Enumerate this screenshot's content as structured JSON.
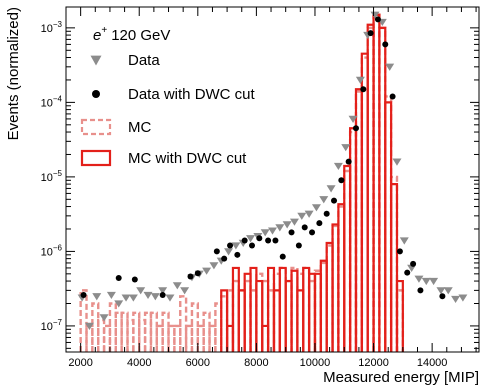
{
  "chart_data": {
    "type": "scatter",
    "title": "",
    "xlabel": "Measured energy [MIP]",
    "ylabel": "Events (normalized)",
    "xlim": [
      1500,
      15600
    ],
    "ylim_log10": [
      -7.35,
      -2.72
    ],
    "y_scale": "log",
    "grid": false,
    "legend_position": "top-left",
    "annotation": {
      "particle": "e",
      "superscript": "+",
      "energy": "120 GeV"
    },
    "x_ticks": [
      2000,
      4000,
      6000,
      8000,
      10000,
      12000,
      14000
    ],
    "x_tick_labels": [
      "2000",
      "4000",
      "6000",
      "8000",
      "10000",
      "12000",
      "14000"
    ],
    "y_ticks_log10": [
      -7,
      -6,
      -5,
      -4,
      -3
    ],
    "y_tick_labels": [
      {
        "base": "10",
        "exp": "−7"
      },
      {
        "base": "10",
        "exp": "−6"
      },
      {
        "base": "10",
        "exp": "−5"
      },
      {
        "base": "10",
        "exp": "−4"
      },
      {
        "base": "10",
        "exp": "−3"
      }
    ],
    "series": [
      {
        "name": "Data",
        "style": "triangle-down",
        "color": "#8c8c8c",
        "points": [
          [
            2050,
            2.4e-07
          ],
          [
            2300,
            1e-07
          ],
          [
            2550,
            2.5e-07
          ],
          [
            2800,
            1.3e-07
          ],
          [
            3050,
            2.6e-07
          ],
          [
            3300,
            2e-07
          ],
          [
            3550,
            2.4e-07
          ],
          [
            3800,
            2.4e-07
          ],
          [
            4050,
            3e-07
          ],
          [
            4300,
            2.6e-07
          ],
          [
            4550,
            2.5e-07
          ],
          [
            4800,
            3e-07
          ],
          [
            5050,
            2.4e-07
          ],
          [
            5300,
            3.5e-07
          ],
          [
            5550,
            3e-07
          ],
          [
            5800,
            4.5e-07
          ],
          [
            6050,
            5e-07
          ],
          [
            6300,
            5.5e-07
          ],
          [
            6550,
            6.5e-07
          ],
          [
            6800,
            7.5e-07
          ],
          [
            7050,
            1e-06
          ],
          [
            7300,
            1.2e-06
          ],
          [
            7550,
            1.3e-06
          ],
          [
            7800,
            1.5e-06
          ],
          [
            8050,
            1.6e-06
          ],
          [
            8300,
            1.8e-06
          ],
          [
            8550,
            1.9e-06
          ],
          [
            8800,
            2.1e-06
          ],
          [
            9050,
            2.3e-06
          ],
          [
            9300,
            2.5e-06
          ],
          [
            9550,
            3e-06
          ],
          [
            9800,
            3.2e-06
          ],
          [
            10050,
            3.9e-06
          ],
          [
            10300,
            5e-06
          ],
          [
            10550,
            7e-06
          ],
          [
            10800,
            1.4e-05
          ],
          [
            11050,
            2.5e-05
          ],
          [
            11300,
            6e-05
          ],
          [
            11550,
            0.0002
          ],
          [
            11800,
            0.0008
          ],
          [
            12050,
            0.0015
          ],
          [
            12300,
            0.0012
          ],
          [
            12550,
            0.0003
          ],
          [
            12800,
            1.6e-05
          ],
          [
            13050,
            1.4e-06
          ],
          [
            13300,
            6e-07
          ],
          [
            13550,
            4.3e-07
          ],
          [
            13800,
            4e-07
          ],
          [
            14050,
            4e-07
          ],
          [
            14300,
            3e-07
          ],
          [
            14550,
            3e-07
          ],
          [
            14800,
            2.3e-07
          ],
          [
            15050,
            2.4e-07
          ]
        ]
      },
      {
        "name": "Data with DWC cut",
        "style": "circle",
        "color": "#000000",
        "points": [
          [
            2100,
            2.6e-07
          ],
          [
            3300,
            4.4e-07
          ],
          [
            3850,
            4.2e-07
          ],
          [
            4800,
            2.6e-07
          ],
          [
            5750,
            4.6e-07
          ],
          [
            6000,
            5.1e-07
          ],
          [
            6650,
            1e-06
          ],
          [
            6900,
            8e-07
          ],
          [
            7100,
            1.2e-06
          ],
          [
            7350,
            9e-07
          ],
          [
            7600,
            1.4e-06
          ],
          [
            7850,
            1.2e-06
          ],
          [
            8100,
            1.5e-06
          ],
          [
            8400,
            1.4e-06
          ],
          [
            8650,
            1.4e-06
          ],
          [
            8900,
            8.5e-07
          ],
          [
            9200,
            1.8e-06
          ],
          [
            9450,
            1.2e-06
          ],
          [
            9650,
            2.1e-06
          ],
          [
            9900,
            1.8e-06
          ],
          [
            10150,
            2.4e-06
          ],
          [
            10400,
            3.2e-06
          ],
          [
            10650,
            4.8e-06
          ],
          [
            10900,
            9e-06
          ],
          [
            11150,
            1.6e-05
          ],
          [
            11400,
            4.5e-05
          ],
          [
            11650,
            0.00015
          ],
          [
            11900,
            0.00085
          ],
          [
            12150,
            0.0013
          ],
          [
            12400,
            0.0006
          ],
          [
            12650,
            0.00012
          ],
          [
            12900,
            1e-06
          ],
          [
            13150,
            5.2e-07
          ],
          [
            13350,
            6.8e-07
          ],
          [
            13600,
            3e-07
          ],
          [
            14350,
            2.5e-07
          ]
        ]
      },
      {
        "name": "MC",
        "style": "dashed-step",
        "color": "#e8908c",
        "bin_width": 200,
        "bins": [
          [
            2000,
            3e-07
          ],
          [
            2200,
            1e-07
          ],
          [
            2400,
            2e-07
          ],
          [
            2600,
            1.2e-07
          ],
          [
            2800,
            1e-07
          ],
          [
            3000,
            2e-07
          ],
          [
            3200,
            1.5e-07
          ],
          [
            3400,
            1.5e-07
          ],
          [
            3600,
            1.2e-07
          ],
          [
            3800,
            1.5e-07
          ],
          [
            4000,
            1.2e-07
          ],
          [
            4200,
            1.5e-07
          ],
          [
            4400,
            1.5e-07
          ],
          [
            4600,
            1e-07
          ],
          [
            4800,
            1.5e-07
          ],
          [
            5000,
            1e-07
          ],
          [
            5200,
            1e-07
          ],
          [
            5400,
            2.5e-07
          ],
          [
            5600,
            1e-07
          ],
          [
            5800,
            2e-07
          ],
          [
            6000,
            1e-07
          ],
          [
            6200,
            1.5e-07
          ],
          [
            6400,
            1e-07
          ],
          [
            6600,
            2e-07
          ],
          [
            6800,
            2.5e-07
          ],
          [
            7000,
            3e-07
          ],
          [
            7200,
            4e-07
          ],
          [
            7400,
            3e-07
          ],
          [
            7600,
            4e-07
          ],
          [
            7800,
            3e-07
          ],
          [
            8000,
            5e-07
          ],
          [
            8200,
            4e-07
          ],
          [
            8400,
            3e-07
          ],
          [
            8600,
            5e-07
          ],
          [
            8800,
            6e-07
          ],
          [
            9000,
            4e-07
          ],
          [
            9200,
            6e-07
          ],
          [
            9400,
            5e-07
          ],
          [
            9600,
            6e-07
          ],
          [
            9800,
            4e-07
          ],
          [
            10000,
            5.5e-07
          ],
          [
            10200,
            7e-07
          ],
          [
            10400,
            1.2e-06
          ],
          [
            10600,
            2.2e-06
          ],
          [
            10800,
            4e-06
          ],
          [
            11000,
            1.2e-05
          ],
          [
            11200,
            4e-05
          ],
          [
            11400,
            0.00014
          ],
          [
            11600,
            0.0004
          ],
          [
            11800,
            0.001
          ],
          [
            12000,
            0.0015
          ],
          [
            12200,
            0.001
          ],
          [
            12400,
            0.00012
          ],
          [
            12600,
            1e-05
          ],
          [
            12800,
            3e-07
          ]
        ]
      },
      {
        "name": "MC with DWC cut",
        "style": "solid-step",
        "color": "#e3201a",
        "bin_width": 200,
        "bins": [
          [
            6800,
            3e-07
          ],
          [
            7000,
            1e-07
          ],
          [
            7200,
            6e-07
          ],
          [
            7400,
            3e-07
          ],
          [
            7600,
            5e-07
          ],
          [
            7800,
            6e-07
          ],
          [
            8000,
            4e-07
          ],
          [
            8200,
            1e-07
          ],
          [
            8400,
            6e-07
          ],
          [
            8600,
            3e-07
          ],
          [
            8800,
            6e-07
          ],
          [
            9000,
            4e-07
          ],
          [
            9200,
            5.5e-07
          ],
          [
            9400,
            3e-07
          ],
          [
            9600,
            6e-07
          ],
          [
            9800,
            5e-07
          ],
          [
            10000,
            5e-07
          ],
          [
            10200,
            7.5e-07
          ],
          [
            10400,
            1.3e-06
          ],
          [
            10600,
            2.3e-06
          ],
          [
            10800,
            4.3e-06
          ],
          [
            11000,
            1.4e-05
          ],
          [
            11200,
            4.5e-05
          ],
          [
            11400,
            0.00015
          ],
          [
            11600,
            0.00045
          ],
          [
            11800,
            0.0011
          ],
          [
            12000,
            0.0015
          ],
          [
            12200,
            0.001
          ],
          [
            12400,
            0.0001
          ],
          [
            12600,
            8e-06
          ],
          [
            12800,
            4e-07
          ]
        ]
      }
    ]
  }
}
